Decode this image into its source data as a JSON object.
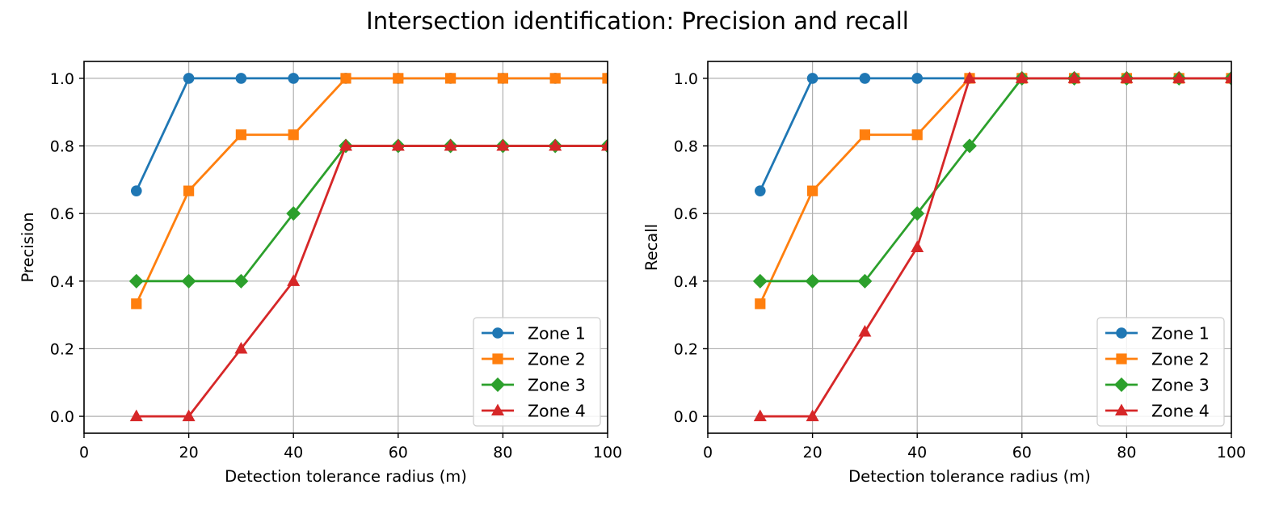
{
  "suptitle": "Intersection identification: Precision and recall",
  "colors": {
    "Zone 1": "#1f77b4",
    "Zone 2": "#ff7f0e",
    "Zone 3": "#2ca02c",
    "Zone 4": "#d62728",
    "grid": "#b0b0b0"
  },
  "markers": {
    "Zone 1": "circle",
    "Zone 2": "square",
    "Zone 3": "diamond",
    "Zone 4": "triangle"
  },
  "chart_data": [
    {
      "type": "line",
      "ylabel": "Precision",
      "xlabel": "Detection tolerance radius (m)",
      "xlim": [
        0,
        100
      ],
      "ylim": [
        -0.05,
        1.05
      ],
      "xticks": [
        0,
        20,
        40,
        60,
        80,
        100
      ],
      "yticks": [
        0.0,
        0.2,
        0.4,
        0.6,
        0.8,
        1.0
      ],
      "ytick_labels": [
        "0.0",
        "0.2",
        "0.4",
        "0.6",
        "0.8",
        "1.0"
      ],
      "grid": true,
      "legend": "lower right",
      "x": [
        10,
        20,
        30,
        40,
        50,
        60,
        70,
        80,
        90,
        100
      ],
      "series": [
        {
          "name": "Zone 1",
          "values": [
            0.667,
            1.0,
            1.0,
            1.0,
            1.0,
            1.0,
            1.0,
            1.0,
            1.0,
            1.0
          ]
        },
        {
          "name": "Zone 2",
          "values": [
            0.333,
            0.667,
            0.833,
            0.833,
            1.0,
            1.0,
            1.0,
            1.0,
            1.0,
            1.0
          ]
        },
        {
          "name": "Zone 3",
          "values": [
            0.4,
            0.4,
            0.4,
            0.6,
            0.8,
            0.8,
            0.8,
            0.8,
            0.8,
            0.8
          ]
        },
        {
          "name": "Zone 4",
          "values": [
            0.0,
            0.0,
            0.2,
            0.4,
            0.8,
            0.8,
            0.8,
            0.8,
            0.8,
            0.8
          ]
        }
      ]
    },
    {
      "type": "line",
      "ylabel": "Recall",
      "xlabel": "Detection tolerance radius (m)",
      "xlim": [
        0,
        100
      ],
      "ylim": [
        -0.05,
        1.05
      ],
      "xticks": [
        0,
        20,
        40,
        60,
        80,
        100
      ],
      "yticks": [
        0.0,
        0.2,
        0.4,
        0.6,
        0.8,
        1.0
      ],
      "ytick_labels": [
        "0.0",
        "0.2",
        "0.4",
        "0.6",
        "0.8",
        "1.0"
      ],
      "grid": true,
      "legend": "lower right",
      "x": [
        10,
        20,
        30,
        40,
        50,
        60,
        70,
        80,
        90,
        100
      ],
      "series": [
        {
          "name": "Zone 1",
          "values": [
            0.667,
            1.0,
            1.0,
            1.0,
            1.0,
            1.0,
            1.0,
            1.0,
            1.0,
            1.0
          ]
        },
        {
          "name": "Zone 2",
          "values": [
            0.333,
            0.667,
            0.833,
            0.833,
            1.0,
            1.0,
            1.0,
            1.0,
            1.0,
            1.0
          ]
        },
        {
          "name": "Zone 3",
          "values": [
            0.4,
            0.4,
            0.4,
            0.6,
            0.8,
            1.0,
            1.0,
            1.0,
            1.0,
            1.0
          ]
        },
        {
          "name": "Zone 4",
          "values": [
            0.0,
            0.0,
            0.25,
            0.5,
            1.0,
            1.0,
            1.0,
            1.0,
            1.0,
            1.0
          ]
        }
      ]
    }
  ]
}
